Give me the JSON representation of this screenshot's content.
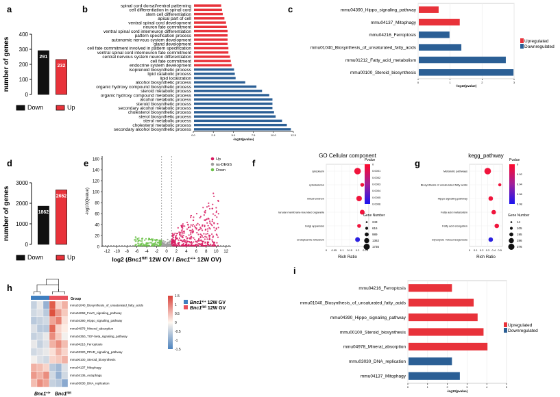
{
  "panel_labels": {
    "a": "a",
    "b": "b",
    "c": "c",
    "d": "d",
    "e": "e",
    "f": "f",
    "g": "g",
    "h": "h",
    "i": "i"
  },
  "colors": {
    "red": "#e8323a",
    "blue": "#2b5f95",
    "black": "#111111",
    "green": "#6cc24a",
    "pink": "#d81b60",
    "grey": "#9e9e9e"
  },
  "chart_data": [
    {
      "id": "a",
      "type": "bar",
      "ylabel": "number of genes",
      "ylim": [
        0,
        400
      ],
      "yticks": [
        "0",
        "100",
        "200",
        "300",
        "400"
      ],
      "categories": [
        "Down",
        "Up"
      ],
      "values": [
        291,
        232
      ],
      "value_labels": [
        "291",
        "232"
      ],
      "legend": [
        "Down",
        "Up"
      ]
    },
    {
      "id": "b",
      "type": "bar",
      "orientation": "horizontal",
      "xlabel": "-log10(pvalue)",
      "xlim": [
        0,
        12.5
      ],
      "xticks": [
        "0.0",
        "2.5",
        "5.0",
        "7.5",
        "10.0",
        "12.5"
      ],
      "categories": [
        "spinal cord dorsal/ventral patterning",
        "cell differentiation in spinal cord",
        "stem cell differentiation",
        "apical part of cell",
        "ventral spinal cord development",
        "neuron fate commitment",
        "ventral spinal cord interneuron differentiation",
        "pattern specification process",
        "autonomic nervous system development",
        "gland development",
        "cell fate commitment involved in pattern specification",
        "ventral spinal cord interneuron fate commitment",
        "central nervous system neuron differentiation",
        "cell fate commitment",
        "endocrine system development",
        "isoprenoid biosynthetic process",
        "lipid catabolic process",
        "lipid localization",
        "alcohol biosynthetic process",
        "organic hydroxy compound biosynthetic process",
        "steroid metabolic process",
        "organic hydroxy compound metabolic process",
        "alcohol metabolic process",
        "steroid biosynthetic process",
        "secondary alcohol metabolic process",
        "cholesterol biosynthetic process",
        "sterol biosynthetic process",
        "sterol metabolic process",
        "cholesterol metabolic process",
        "secondary alcohol biosynthetic process"
      ],
      "values": [
        3.4,
        3.5,
        3.6,
        3.8,
        4.0,
        4.1,
        4.2,
        4.2,
        4.2,
        4.2,
        4.3,
        4.3,
        4.5,
        4.6,
        4.7,
        5.0,
        5.1,
        5.2,
        6.4,
        7.8,
        8.5,
        9.4,
        9.8,
        9.8,
        9.8,
        10.0,
        10.2,
        11.0,
        11.6,
        12.1
      ],
      "direction": [
        "up",
        "up",
        "up",
        "up",
        "up",
        "up",
        "up",
        "up",
        "up",
        "up",
        "up",
        "up",
        "up",
        "up",
        "up",
        "down",
        "down",
        "down",
        "down",
        "down",
        "down",
        "down",
        "down",
        "down",
        "down",
        "down",
        "down",
        "down",
        "down",
        "down"
      ]
    },
    {
      "id": "c",
      "type": "bar",
      "orientation": "horizontal",
      "xlabel": "-log10(pvalue)",
      "xlim": [
        0,
        3
      ],
      "xticks": [
        "0",
        "1",
        "2",
        "3"
      ],
      "categories": [
        "mmu04390_Hippo_signaling_pathway",
        "mmu04137_Mitophagy",
        "mmu04216_Ferroptosis",
        "mmu01040_Biosynthesis_of_unsaturated_fatty_acids",
        "mmu01212_Fatty_acid_metabolism",
        "mmu00100_Steroid_biosynthesis"
      ],
      "values": [
        0.62,
        1.28,
        0.96,
        1.33,
        2.72,
        2.96
      ],
      "direction": [
        "up",
        "up",
        "down",
        "down",
        "down",
        "down"
      ],
      "legend": [
        "Upregulated",
        "Downregulated"
      ]
    },
    {
      "id": "d",
      "type": "bar",
      "ylabel": "number of genes",
      "ylim": [
        0,
        3000
      ],
      "yticks": [
        "0",
        "1000",
        "2000",
        "3000"
      ],
      "categories": [
        "Down",
        "Up"
      ],
      "values": [
        1862,
        2652
      ],
      "value_labels": [
        "1862",
        "2652"
      ],
      "legend": [
        "Down",
        "Up"
      ]
    },
    {
      "id": "e",
      "type": "scatter",
      "title": "",
      "xlabel_parts": [
        "log2 (",
        "Bnc1",
        "fl/fl",
        " 12W OV / ",
        "Bnc1",
        "+/+",
        " 12W OV)"
      ],
      "ylabel": "-log10(Qvalue)",
      "xlim": [
        -13,
        13
      ],
      "ylim": [
        0,
        165
      ],
      "xticks": [
        "-12",
        "-10",
        "-8",
        "-6",
        "-4",
        "-2",
        "0",
        "2",
        "4",
        "6",
        "8",
        "10",
        "12"
      ],
      "yticks": [
        "0",
        "20",
        "40",
        "60",
        "80",
        "100",
        "120",
        "140",
        "160"
      ],
      "legend": [
        "Up",
        "ns-DEGS",
        "Down"
      ]
    },
    {
      "id": "f",
      "type": "scatter",
      "title": "GO Cellular component",
      "xlabel": "Rich Ratio",
      "xticks": [
        "0",
        "0.05",
        "0.1",
        "0.15",
        "0.2",
        "0.25"
      ],
      "categories": [
        "cytoplasm",
        "cytoskeleton",
        "mitochondrion",
        "lanular membrane-bounded organelle",
        "Golgi apparatus",
        "endoplasmic reticulum"
      ],
      "x": [
        0.2,
        0.23,
        0.21,
        0.23,
        0.21,
        0.2
      ],
      "pvalue": [
        0.0,
        0.0001,
        0.0001,
        0.0001,
        0.0001,
        0.0006
      ],
      "gene_number": [
        1735,
        243,
        989,
        616,
        243,
        616
      ],
      "colorbar_title": "Pvalue",
      "colorbar_ticks": [
        "0",
        "0.0001",
        "0.0002",
        "0.0003",
        "0.0004",
        "0.0005",
        "0.0006"
      ],
      "size_title": "Gene Number",
      "size_legend": [
        "243",
        "616",
        "989",
        "1362",
        "1735"
      ]
    },
    {
      "id": "g",
      "type": "scatter",
      "title": "kegg_pathway",
      "xlabel": "Rich Ratio",
      "xticks": [
        "0",
        "0.1",
        "0.2",
        "0.3",
        "0.4",
        "0.5"
      ],
      "categories": [
        "Metabolic pathways",
        "Biosynthesis of unsaturated fatty acids",
        "Hippo signaling pathway",
        "Fatty acid metabolism",
        "Fatty acid elongation",
        "Glycolysis / Gluconeogenesis"
      ],
      "x": [
        0.3,
        0.5,
        0.35,
        0.4,
        0.45,
        0.35
      ],
      "pvalue": [
        0.0,
        0.0,
        0.0,
        0.0,
        0.0,
        0.08
      ],
      "gene_number": [
        376,
        14,
        105,
        105,
        105,
        105
      ],
      "colorbar_title": "Pvalue",
      "colorbar_ticks": [
        "0",
        "0.02",
        "0.04",
        "0.06",
        "0.08"
      ],
      "size_title": "Gene Number",
      "size_legend": [
        "14",
        "105",
        "195",
        "286",
        "376"
      ]
    },
    {
      "id": "h",
      "type": "heatmap",
      "legend_title": "Group",
      "rows": [
        "mmu01040_Biosynthesis_of_unsaturated_fatty_acids",
        "mmu04068_FoxO_signaling_pathway",
        "mmu04390_Hippo_signaling_pathway",
        "mmu04978_Mineral_absorption",
        "mmu04350_TGF-beta_signaling_pathway",
        "mmu04216_Ferroptosis",
        "mmu03320_PPAR_signaling_pathway",
        "mmu00100_Steroid_biosynthesis",
        "mmu04137_Mitophagy",
        "mmu04136_Autophagy",
        "mmu03030_DNA_replication"
      ],
      "groups": [
        "Bnc1+/+ 12W GV",
        "Bnc1fl/fl 12W GV"
      ],
      "group_labels": [
        {
          "gene": "Bnc1",
          "sup": "+/+",
          "rest": " 12W GV"
        },
        {
          "gene": "Bnc1",
          "sup": "fl/fl",
          "rest": " 12W GV"
        }
      ],
      "colorbar_ticks": [
        "1.5",
        "1",
        "0.5",
        "0",
        "-0.5",
        "-1",
        "-1.5"
      ],
      "values": [
        [
          -0.5,
          -0.2,
          -0.9,
          1.3,
          0.3,
          0.6
        ],
        [
          -0.4,
          -0.3,
          -0.6,
          1.4,
          0.8,
          0.4
        ],
        [
          -0.6,
          -0.5,
          -0.4,
          0.7,
          1.0,
          0.2
        ],
        [
          -0.3,
          -0.6,
          -0.6,
          1.2,
          0.3,
          0.1
        ],
        [
          -0.5,
          -0.4,
          -0.2,
          0.9,
          0.4,
          -0.1
        ],
        [
          -0.2,
          -0.5,
          -0.3,
          0.6,
          0.9,
          0.5
        ],
        [
          -0.4,
          -0.3,
          -0.2,
          0.2,
          0.6,
          0.3
        ],
        [
          -0.1,
          -0.3,
          -0.4,
          0.3,
          0.4,
          0.6
        ],
        [
          0.6,
          0.5,
          0.3,
          -0.6,
          -0.8,
          -0.3
        ],
        [
          0.8,
          0.6,
          0.9,
          -0.4,
          -0.9,
          -0.4
        ],
        [
          0.5,
          0.9,
          0.7,
          -0.5,
          -0.6,
          -1.0
        ]
      ],
      "col_labels": [
        {
          "gene": "Bnc1",
          "sup": "+/+"
        },
        {
          "gene": "Bnc1",
          "sup": "fl/fl"
        }
      ]
    },
    {
      "id": "i",
      "type": "bar",
      "orientation": "horizontal",
      "xlabel": "-log10(pvalue)",
      "xlim": [
        0,
        5
      ],
      "xticks": [
        "0",
        "1",
        "2",
        "3",
        "4",
        "5"
      ],
      "categories": [
        "mmu04216_Ferroptosis",
        "mmu01040_Biosynthesis_of_unsaturated_fatty_acids",
        "mmu04390_Hippo_signaling_pathway",
        "mmu00100_Steroid_biosynthesis",
        "mmu04978_Mineral_absorption",
        "mmu03030_DNA_replication",
        "mmu04137_Mitophagy"
      ],
      "values": [
        2.2,
        3.3,
        3.5,
        3.8,
        4.0,
        2.2,
        2.6
      ],
      "direction": [
        "up",
        "up",
        "up",
        "up",
        "up",
        "down",
        "down"
      ],
      "legend": [
        "Upregulated",
        "Downregulated"
      ]
    }
  ]
}
